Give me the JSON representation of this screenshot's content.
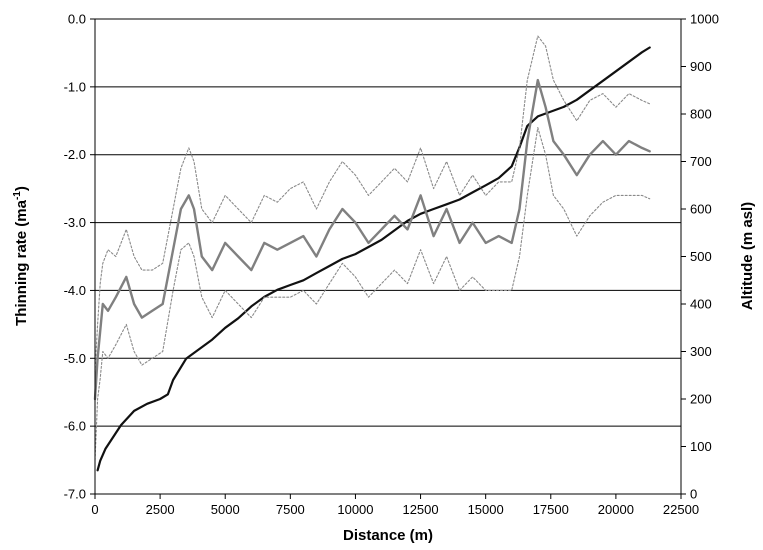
{
  "chart_data": {
    "type": "line",
    "title": "",
    "xlabel": "Distance (m)",
    "ylabel_left": "Thinning rate (ma",
    "ylabel_left_sup": "-1",
    "ylabel_left_close": ")",
    "ylabel_right": "Altitude (m asl)",
    "xlim": [
      0,
      22500
    ],
    "ylim_left": [
      -7.0,
      0.0
    ],
    "ylim_right": [
      0,
      1000
    ],
    "x_ticks": [
      "0",
      "2500",
      "5000",
      "7500",
      "10000",
      "12500",
      "15000",
      "17500",
      "20000",
      "22500"
    ],
    "y_left_ticks": [
      "0.0",
      "-1.0",
      "-2.0",
      "-3.0",
      "-4.0",
      "-5.0",
      "-6.0",
      "-7.0"
    ],
    "y_right_ticks": [
      "1000",
      "900",
      "800",
      "700",
      "600",
      "500",
      "400",
      "300",
      "200",
      "100",
      "0"
    ],
    "grid": "horizontal",
    "series": [
      {
        "axis": "right",
        "color": "#111111",
        "style": "solid-thick",
        "x": [
          100,
          200,
          400,
          700,
          1000,
          1500,
          2000,
          2500,
          2800,
          3000,
          3500,
          4000,
          4500,
          5000,
          5500,
          6000,
          6500,
          7000,
          7500,
          8000,
          8500,
          9000,
          9500,
          10000,
          10500,
          11000,
          11500,
          12000,
          12500,
          13000,
          13500,
          14000,
          14500,
          15000,
          15500,
          16000,
          16300,
          16600,
          17000,
          17500,
          18000,
          18500,
          19000,
          19500,
          20000,
          20500,
          21000,
          21300
        ],
        "values": [
          50,
          70,
          95,
          120,
          145,
          175,
          190,
          200,
          210,
          240,
          285,
          305,
          325,
          350,
          370,
          395,
          415,
          430,
          440,
          450,
          465,
          480,
          495,
          505,
          520,
          535,
          555,
          575,
          590,
          600,
          610,
          620,
          635,
          650,
          665,
          690,
          730,
          775,
          795,
          805,
          815,
          830,
          850,
          870,
          890,
          910,
          930,
          940
        ]
      },
      {
        "axis": "left",
        "color": "#808080",
        "style": "solid",
        "x": [
          0,
          100,
          200,
          300,
          500,
          800,
          1200,
          1500,
          1800,
          2200,
          2600,
          3000,
          3300,
          3600,
          3800,
          4100,
          4500,
          5000,
          5500,
          6000,
          6500,
          7000,
          7500,
          8000,
          8500,
          9000,
          9500,
          10000,
          10500,
          11000,
          11500,
          12000,
          12500,
          13000,
          13500,
          14000,
          14500,
          15000,
          15500,
          16000,
          16300,
          16600,
          17000,
          17300,
          17600,
          18000,
          18500,
          19000,
          19500,
          20000,
          20500,
          21000,
          21300
        ],
        "values": [
          -5.6,
          -5.0,
          -4.6,
          -4.2,
          -4.3,
          -4.1,
          -3.8,
          -4.2,
          -4.4,
          -4.3,
          -4.2,
          -3.4,
          -2.8,
          -2.6,
          -2.8,
          -3.5,
          -3.7,
          -3.3,
          -3.5,
          -3.7,
          -3.3,
          -3.4,
          -3.3,
          -3.2,
          -3.5,
          -3.1,
          -2.8,
          -3.0,
          -3.3,
          -3.1,
          -2.9,
          -3.1,
          -2.6,
          -3.2,
          -2.8,
          -3.3,
          -3.0,
          -3.3,
          -3.2,
          -3.3,
          -2.8,
          -1.8,
          -0.9,
          -1.3,
          -1.8,
          -2.0,
          -2.3,
          -2.0,
          -1.8,
          -2.0,
          -1.8,
          -1.9,
          -1.95
        ]
      },
      {
        "axis": "left",
        "color": "#8a8a8a",
        "style": "dotted",
        "x": [
          0,
          100,
          200,
          300,
          500,
          800,
          1200,
          1500,
          1800,
          2200,
          2600,
          3000,
          3300,
          3600,
          3800,
          4100,
          4500,
          5000,
          5500,
          6000,
          6500,
          7000,
          7500,
          8000,
          8500,
          9000,
          9500,
          10000,
          10500,
          11000,
          11500,
          12000,
          12500,
          13000,
          13500,
          14000,
          14500,
          15000,
          15500,
          16000,
          16300,
          16600,
          17000,
          17300,
          17600,
          18000,
          18500,
          19000,
          19500,
          20000,
          20500,
          21000,
          21300
        ],
        "values": [
          -5.2,
          -4.5,
          -3.9,
          -3.6,
          -3.4,
          -3.5,
          -3.1,
          -3.5,
          -3.7,
          -3.7,
          -3.6,
          -2.8,
          -2.2,
          -1.9,
          -2.1,
          -2.8,
          -3.0,
          -2.6,
          -2.8,
          -3.0,
          -2.6,
          -2.7,
          -2.5,
          -2.4,
          -2.8,
          -2.4,
          -2.1,
          -2.3,
          -2.6,
          -2.4,
          -2.2,
          -2.4,
          -1.9,
          -2.5,
          -2.1,
          -2.6,
          -2.3,
          -2.6,
          -2.4,
          -2.4,
          -1.9,
          -0.9,
          -0.25,
          -0.4,
          -0.9,
          -1.2,
          -1.5,
          -1.2,
          -1.1,
          -1.3,
          -1.1,
          -1.2,
          -1.25
        ]
      },
      {
        "axis": "left",
        "color": "#8a8a8a",
        "style": "dotted",
        "x": [
          0,
          100,
          200,
          300,
          500,
          800,
          1200,
          1500,
          1800,
          2200,
          2600,
          3000,
          3300,
          3600,
          3800,
          4100,
          4500,
          5000,
          5500,
          6000,
          6500,
          7000,
          7500,
          8000,
          8500,
          9000,
          9500,
          10000,
          10500,
          11000,
          11500,
          12000,
          12500,
          13000,
          13500,
          14000,
          14500,
          15000,
          15500,
          16000,
          16300,
          16600,
          17000,
          17300,
          17600,
          18000,
          18500,
          19000,
          19500,
          20000,
          20500,
          21000,
          21300
        ],
        "values": [
          -6.5,
          -5.6,
          -5.3,
          -4.9,
          -5.0,
          -4.8,
          -4.5,
          -4.9,
          -5.1,
          -5.0,
          -4.9,
          -4.0,
          -3.4,
          -3.3,
          -3.5,
          -4.1,
          -4.4,
          -4.0,
          -4.2,
          -4.4,
          -4.1,
          -4.1,
          -4.1,
          -4.0,
          -4.2,
          -3.9,
          -3.6,
          -3.8,
          -4.1,
          -3.9,
          -3.7,
          -3.9,
          -3.4,
          -3.9,
          -3.5,
          -4.0,
          -3.8,
          -4.0,
          -4.0,
          -4.0,
          -3.5,
          -2.6,
          -1.6,
          -2.0,
          -2.6,
          -2.8,
          -3.2,
          -2.9,
          -2.7,
          -2.6,
          -2.6,
          -2.6,
          -2.65
        ]
      }
    ]
  }
}
